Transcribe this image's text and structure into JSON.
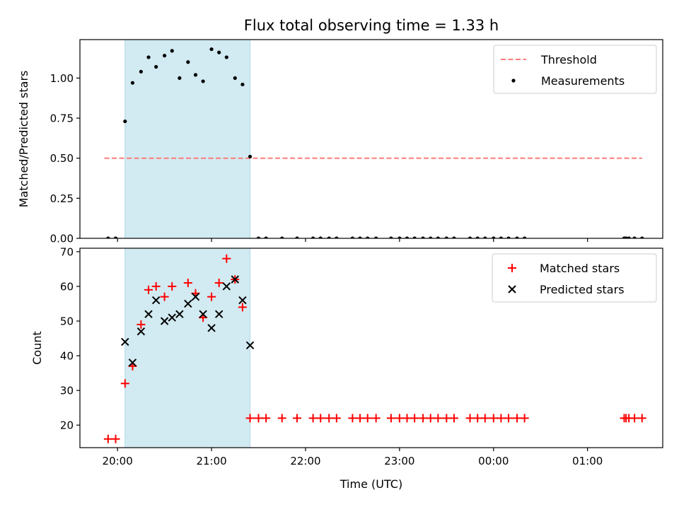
{
  "title": "Flux total observing time = 1.33 h",
  "xlabel": "Time (UTC)",
  "colors": {
    "shade": "#add8e6",
    "threshold": "#ff7b7b",
    "measurement": "#000000",
    "matched": "#ff0000",
    "predicted": "#000000"
  },
  "chart_data": [
    {
      "type": "scatter",
      "ylabel": "Matched/Predicted stars",
      "ylim": [
        0,
        1.24
      ],
      "yticks": [
        0.0,
        0.25,
        0.5,
        0.75,
        1.0
      ],
      "ytick_labels": [
        "0.00",
        "0.25",
        "0.50",
        "0.75",
        "1.00"
      ],
      "x_unit": "hours since 20:00 UTC",
      "xlim": [
        -0.4,
        5.8
      ],
      "xticks": [
        0,
        1,
        2,
        3,
        4,
        5
      ],
      "xtick_labels": [
        "20:00",
        "21:00",
        "22:00",
        "23:00",
        "00:00",
        "01:00"
      ],
      "legend": {
        "placement": "top-right",
        "entries": [
          "Threshold",
          "Measurements"
        ]
      },
      "shaded_interval": {
        "x0": 0.08,
        "x1": 1.41
      },
      "threshold": {
        "name": "Threshold",
        "y": 0.5,
        "x0": -0.14,
        "x1": 5.58
      },
      "series": [
        {
          "name": "Measurements",
          "x": [
            -0.1,
            -0.02,
            0.08,
            0.16,
            0.25,
            0.33,
            0.41,
            0.5,
            0.58,
            0.66,
            0.75,
            0.83,
            0.91,
            1.0,
            1.08,
            1.16,
            1.25,
            1.33,
            1.41,
            1.5,
            1.58,
            1.75,
            1.91,
            2.08,
            2.16,
            2.25,
            2.33,
            2.5,
            2.58,
            2.66,
            2.75,
            2.91,
            3.0,
            3.08,
            3.16,
            3.25,
            3.33,
            3.41,
            3.5,
            3.58,
            3.75,
            3.83,
            3.91,
            4.0,
            4.08,
            4.16,
            4.25,
            4.33,
            5.39,
            5.41,
            5.44,
            5.5,
            5.58
          ],
          "y": [
            0,
            0,
            0.73,
            0.97,
            1.04,
            1.13,
            1.07,
            1.14,
            1.17,
            1.0,
            1.1,
            1.02,
            0.98,
            1.18,
            1.16,
            1.13,
            1.0,
            0.96,
            0.51,
            0,
            0,
            0,
            0,
            0,
            0,
            0,
            0,
            0,
            0,
            0,
            0,
            0,
            0,
            0,
            0,
            0,
            0,
            0,
            0,
            0,
            0,
            0,
            0,
            0,
            0,
            0,
            0,
            0,
            0,
            0,
            0,
            0,
            0
          ]
        }
      ]
    },
    {
      "type": "scatter",
      "ylabel": "Count",
      "xlabel": "Time (UTC)",
      "ylim": [
        13.5,
        71
      ],
      "yticks": [
        20,
        30,
        40,
        50,
        60,
        70
      ],
      "ytick_labels": [
        "20",
        "30",
        "40",
        "50",
        "60",
        "70"
      ],
      "x_unit": "hours since 20:00 UTC",
      "xlim": [
        -0.4,
        5.8
      ],
      "xticks": [
        0,
        1,
        2,
        3,
        4,
        5
      ],
      "xtick_labels": [
        "20:00",
        "21:00",
        "22:00",
        "23:00",
        "00:00",
        "01:00"
      ],
      "legend": {
        "placement": "top-right",
        "entries": [
          "Matched stars",
          "Predicted stars"
        ]
      },
      "shaded_interval": {
        "x0": 0.08,
        "x1": 1.41
      },
      "series": [
        {
          "name": "Matched stars",
          "marker": "plus",
          "x": [
            -0.1,
            -0.02,
            0.08,
            0.16,
            0.25,
            0.33,
            0.41,
            0.5,
            0.58,
            0.75,
            0.83,
            0.91,
            1.0,
            1.08,
            1.16,
            1.25,
            1.33,
            1.41,
            1.5,
            1.58,
            1.75,
            1.91,
            2.08,
            2.16,
            2.25,
            2.33,
            2.5,
            2.58,
            2.66,
            2.75,
            2.91,
            3.0,
            3.08,
            3.16,
            3.25,
            3.33,
            3.41,
            3.5,
            3.58,
            3.75,
            3.83,
            3.91,
            4.0,
            4.08,
            4.16,
            4.25,
            4.33,
            5.39,
            5.41,
            5.44,
            5.5,
            5.58
          ],
          "y": [
            16,
            16,
            32,
            37,
            49,
            59,
            60,
            57,
            60,
            61,
            58,
            51,
            57,
            61,
            68,
            62,
            54,
            22,
            22,
            22,
            22,
            22,
            22,
            22,
            22,
            22,
            22,
            22,
            22,
            22,
            22,
            22,
            22,
            22,
            22,
            22,
            22,
            22,
            22,
            22,
            22,
            22,
            22,
            22,
            22,
            22,
            22,
            22,
            22,
            22,
            22,
            22
          ]
        },
        {
          "name": "Predicted stars",
          "marker": "x",
          "x": [
            0.08,
            0.16,
            0.25,
            0.33,
            0.41,
            0.5,
            0.58,
            0.66,
            0.75,
            0.83,
            0.91,
            1.0,
            1.08,
            1.16,
            1.25,
            1.33,
            1.41
          ],
          "y": [
            44,
            38,
            47,
            52,
            56,
            50,
            51,
            52,
            55,
            57,
            52,
            48,
            52,
            60,
            62,
            56,
            43
          ]
        }
      ]
    }
  ]
}
